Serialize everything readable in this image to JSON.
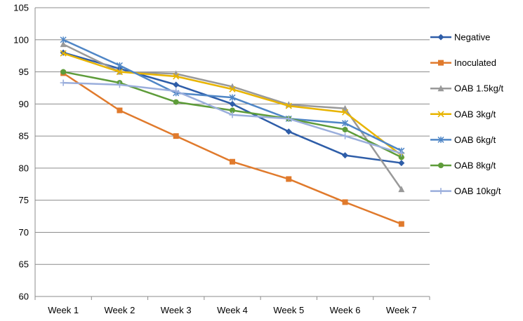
{
  "chart_data": {
    "type": "line",
    "title": "",
    "xlabel": "",
    "ylabel": "",
    "categories": [
      "Week 1",
      "Week 2",
      "Week 3",
      "Week 4",
      "Week 5",
      "Week 6",
      "Week 7"
    ],
    "ylim": [
      60,
      105
    ],
    "yticks": [
      60,
      65,
      70,
      75,
      80,
      85,
      90,
      95,
      100,
      105
    ],
    "grid": "horizontal",
    "legend_position": "right",
    "series": [
      {
        "name": "Negative",
        "marker": "diamond",
        "color": "#2e5da8",
        "values": [
          98.0,
          95.5,
          93.0,
          90.0,
          85.7,
          82.0,
          80.8
        ]
      },
      {
        "name": "Inoculated",
        "marker": "square",
        "color": "#e07a2c",
        "values": [
          94.8,
          89.0,
          85.0,
          81.0,
          78.3,
          74.7,
          71.3
        ]
      },
      {
        "name": "OAB 1.5kg/t",
        "marker": "triangle",
        "color": "#999999",
        "values": [
          99.3,
          95.0,
          94.7,
          92.7,
          89.9,
          89.3,
          76.7
        ]
      },
      {
        "name": "OAB 3kg/t",
        "marker": "x",
        "color": "#e8b400",
        "values": [
          97.9,
          95.0,
          94.3,
          92.3,
          89.7,
          88.7,
          82.0
        ]
      },
      {
        "name": "OAB 6kg/t",
        "marker": "asterisk",
        "color": "#4f86c6",
        "values": [
          100.0,
          96.0,
          91.7,
          91.0,
          87.7,
          87.0,
          82.7
        ]
      },
      {
        "name": "OAB 8kg/t",
        "marker": "circle",
        "color": "#5e9c3a",
        "values": [
          95.0,
          93.3,
          90.3,
          89.0,
          87.7,
          86.0,
          81.7
        ]
      },
      {
        "name": "OAB 10kg/t",
        "marker": "plus",
        "color": "#9aaedc",
        "values": [
          93.3,
          93.0,
          92.0,
          88.3,
          87.7,
          85.0,
          82.3
        ]
      }
    ]
  }
}
